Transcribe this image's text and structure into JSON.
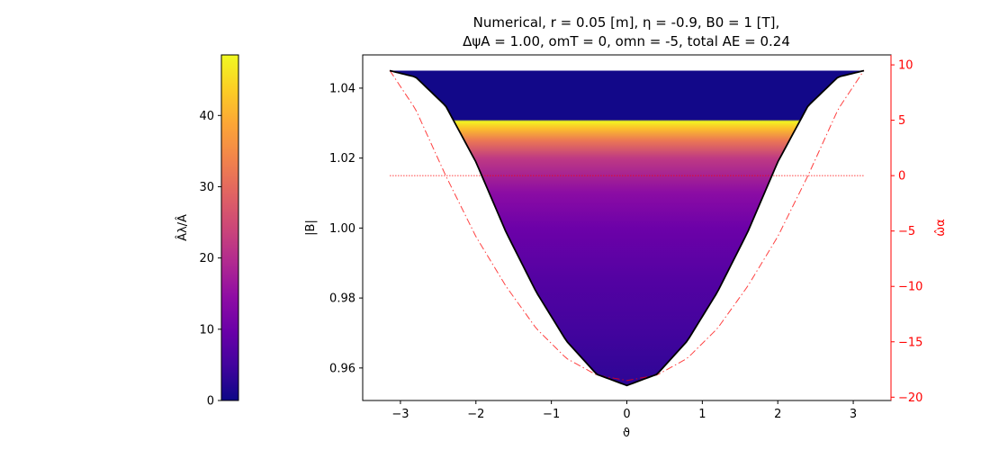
{
  "chart_data": {
    "type": "area",
    "title_line1": "Numerical, r = 0.05 [m], η = -0.9, B0 = 1 [T],",
    "title_line2": "ΔψA = 1.00, omT = 0, omn = -5, total AE = 0.24",
    "xlabel": "ϑ",
    "ylabel_left": "|B|",
    "ylabel_right": "ω̂α",
    "colorbar_label": "Âλ/Â",
    "xlim": [
      -3.5,
      3.5
    ],
    "ylim_left": [
      0.9507,
      1.0495
    ],
    "ylim_right": [
      -20.3,
      10.9
    ],
    "clim": [
      0,
      48.5
    ],
    "colormap": "plasma",
    "x_ticks": [
      -3,
      -2,
      -1,
      0,
      1,
      2,
      3
    ],
    "x_tick_labels": [
      "−3",
      "−2",
      "−1",
      "0",
      "1",
      "2",
      "3"
    ],
    "y_left_ticks": [
      0.96,
      0.98,
      1.0,
      1.02,
      1.04
    ],
    "y_left_tick_labels": [
      "0.96",
      "0.98",
      "1.00",
      "1.02",
      "1.04"
    ],
    "y_right_ticks": [
      -20,
      -15,
      -10,
      -5,
      0,
      5,
      10
    ],
    "y_right_tick_labels": [
      "−20",
      "−15",
      "−10",
      "−5",
      "0",
      "5",
      "10"
    ],
    "colorbar_ticks": [
      0,
      10,
      20,
      30,
      40
    ],
    "colorbar_tick_labels": [
      "0",
      "10",
      "20",
      "30",
      "40"
    ],
    "B_curve": {
      "name": "|B|",
      "color": "#000000",
      "x": [
        -3.1416,
        -2.8,
        -2.4,
        -2.0,
        -1.6,
        -1.2,
        -0.8,
        -0.4,
        0.0,
        0.4,
        0.8,
        1.2,
        1.6,
        2.0,
        2.4,
        2.8,
        3.1416
      ],
      "y": [
        1.045,
        1.0432,
        1.0349,
        1.0189,
        0.9988,
        0.9817,
        0.9677,
        0.9582,
        0.955,
        0.9582,
        0.9677,
        0.9817,
        0.9988,
        1.0189,
        1.0349,
        1.0432,
        1.045
      ]
    },
    "omega_curve": {
      "name": "ω̂α",
      "color": "#ff0000",
      "style": "dash-dot",
      "x": [
        -3.1416,
        -2.8,
        -2.4,
        -2.0,
        -1.6,
        -1.2,
        -0.8,
        -0.4,
        0.0,
        0.4,
        0.8,
        1.2,
        1.6,
        2.0,
        2.4,
        2.8,
        3.1416
      ],
      "y": [
        9.5,
        6.0,
        0.0,
        -5.5,
        -10.0,
        -13.8,
        -16.5,
        -18.0,
        -18.5,
        -18.0,
        -16.5,
        -13.8,
        -10.0,
        -5.5,
        0.0,
        6.0,
        9.5
      ]
    },
    "zero_line": {
      "y": 0,
      "color": "#ff0000",
      "style": "dotted",
      "x": [
        -3.1416,
        3.1416
      ]
    },
    "Alambda_profile": {
      "B_levels": [
        0.955,
        0.97,
        0.985,
        1.0,
        1.01,
        1.02,
        1.025,
        1.0285,
        1.0305,
        1.031,
        1.045
      ],
      "values": [
        3,
        5,
        7,
        10,
        14,
        22,
        32,
        42,
        48,
        0.5,
        0.5
      ]
    }
  }
}
